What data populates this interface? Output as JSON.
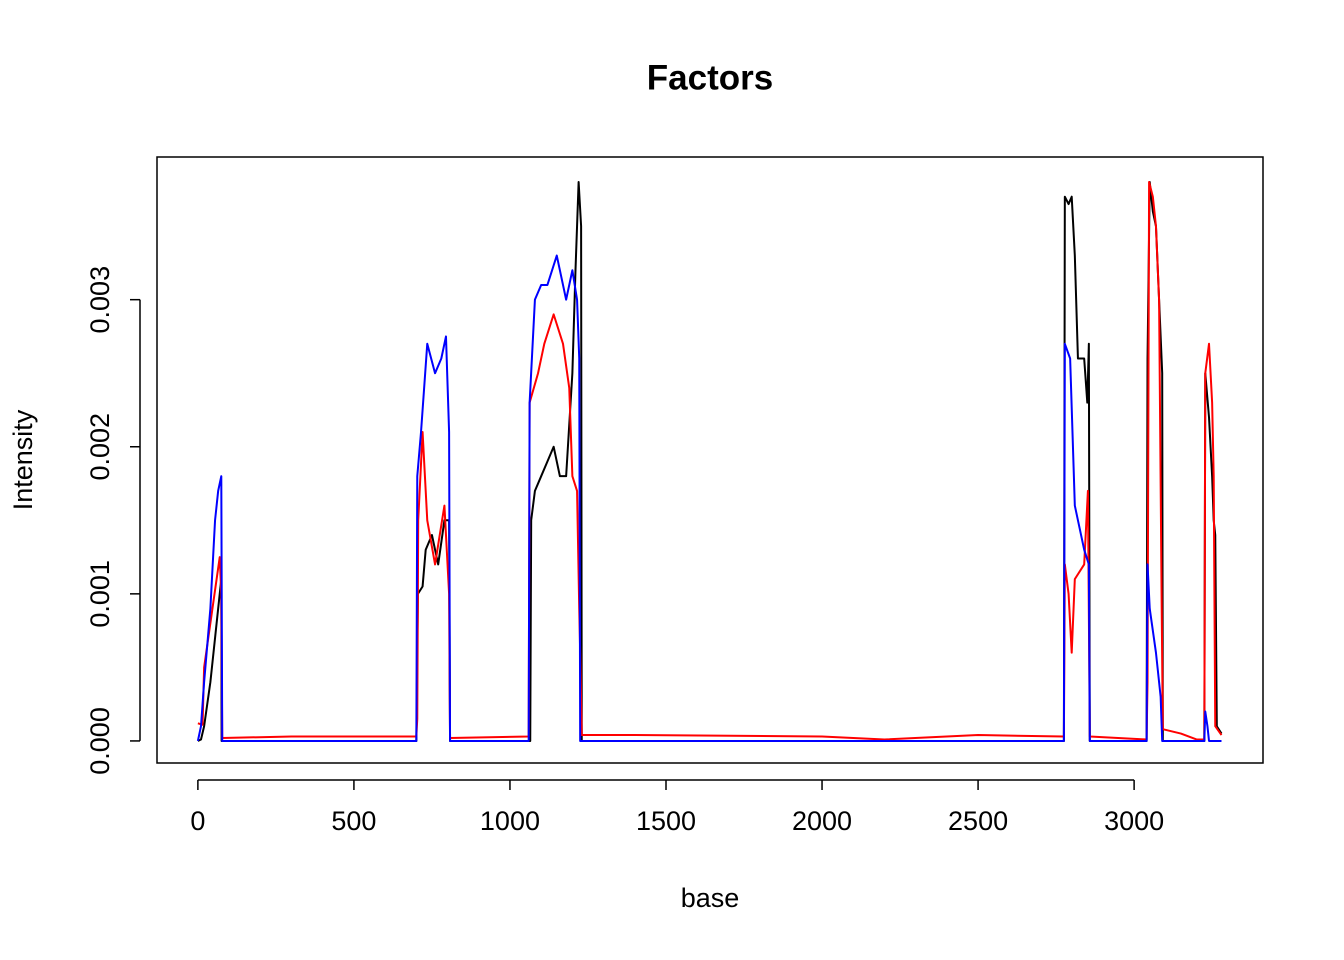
{
  "chart_data": {
    "type": "line",
    "title": "Factors",
    "x_label": "base",
    "y_label": "Intensity",
    "xlim": [
      -131,
      3413
    ],
    "ylim": [
      -0.00015,
      0.00397
    ],
    "xticks": [
      0,
      500,
      1000,
      1500,
      2000,
      2500,
      3000
    ],
    "yticks": [
      {
        "value": 0,
        "label": "0.000"
      },
      {
        "value": 0.001,
        "label": "0.001"
      },
      {
        "value": 0.002,
        "label": "0.002"
      },
      {
        "value": 0.003,
        "label": "0.003"
      }
    ],
    "grid": false,
    "series": [
      {
        "color": "#000000",
        "x": [
          0,
          10,
          20,
          40,
          60,
          70,
          75,
          76,
          700,
          705,
          720,
          730,
          750,
          770,
          790,
          805,
          808,
          1065,
          1068,
          1080,
          1100,
          1120,
          1140,
          1160,
          1180,
          1200,
          1210,
          1220,
          1228,
          1230,
          2775,
          2778,
          2790,
          2800,
          2810,
          2820,
          2840,
          2850,
          2855,
          2858,
          3040,
          3043,
          3050,
          3060,
          3070,
          3080,
          3090,
          3092,
          3225,
          3228,
          3240,
          3250,
          3255,
          3260,
          3265,
          3280
        ],
        "values": [
          0,
          1e-05,
          0.0001,
          0.0004,
          0.0008,
          0.001,
          0.0011,
          0,
          0,
          0.001,
          0.00105,
          0.0013,
          0.0014,
          0.0012,
          0.0015,
          0.0015,
          0,
          0,
          0.0015,
          0.0017,
          0.0018,
          0.0019,
          0.002,
          0.0018,
          0.0018,
          0.0025,
          0.0032,
          0.0038,
          0.0035,
          0,
          0,
          0.0037,
          0.00365,
          0.0037,
          0.0033,
          0.0026,
          0.0026,
          0.0023,
          0.0027,
          0,
          0,
          0.0026,
          0.0038,
          0.0036,
          0.0035,
          0.003,
          0.0025,
          0,
          0,
          0.0025,
          0.0022,
          0.0018,
          0.0015,
          0.0014,
          0.0001,
          5e-05
        ]
      },
      {
        "color": "#ff0000",
        "x": [
          0,
          15,
          20,
          40,
          60,
          70,
          75,
          78,
          300,
          700,
          703,
          706,
          720,
          735,
          760,
          790,
          805,
          808,
          1060,
          1063,
          1090,
          1110,
          1140,
          1170,
          1190,
          1200,
          1215,
          1222,
          1225,
          1230,
          1400,
          2000,
          2200,
          2500,
          2775,
          2778,
          2790,
          2800,
          2810,
          2840,
          2852,
          2858,
          3040,
          3043,
          3048,
          3060,
          3070,
          3080,
          3088,
          3092,
          3150,
          3200,
          3225,
          3228,
          3240,
          3250,
          3255,
          3260,
          3280
        ],
        "values": [
          0.00012,
          0.00011,
          0.0005,
          0.0008,
          0.0011,
          0.00125,
          0.001,
          2e-05,
          3e-05,
          3e-05,
          0.00015,
          0.0015,
          0.0021,
          0.0015,
          0.0012,
          0.0016,
          0.001,
          2e-05,
          3e-05,
          0.0023,
          0.0025,
          0.0027,
          0.0029,
          0.0027,
          0.0024,
          0.0018,
          0.0017,
          0.0009,
          0.0006,
          4e-05,
          4e-05,
          3e-05,
          1e-05,
          4e-05,
          3e-05,
          0.0012,
          0.001,
          0.0006,
          0.0011,
          0.0012,
          0.0017,
          3e-05,
          1e-05,
          0.0004,
          0.0038,
          0.0037,
          0.0035,
          0.003,
          0.001,
          8e-05,
          5e-05,
          1e-05,
          1e-05,
          0.0025,
          0.0027,
          0.0023,
          0.0018,
          0.0001,
          4e-05
        ]
      },
      {
        "color": "#0000ff",
        "x": [
          0,
          10,
          20,
          40,
          55,
          65,
          75,
          78,
          700,
          703,
          715,
          735,
          760,
          780,
          795,
          805,
          808,
          1060,
          1063,
          1080,
          1100,
          1120,
          1150,
          1180,
          1200,
          1215,
          1222,
          1225,
          2775,
          2778,
          2795,
          2810,
          2820,
          2840,
          2855,
          2858,
          3040,
          3043,
          3050,
          3070,
          3085,
          3090,
          3225,
          3228,
          3235,
          3240,
          3280
        ],
        "values": [
          0,
          0.0001,
          0.0004,
          0.0009,
          0.0015,
          0.0017,
          0.0018,
          0,
          0,
          0.0018,
          0.0021,
          0.0027,
          0.0025,
          0.0026,
          0.00275,
          0.0021,
          0,
          0,
          0.0023,
          0.003,
          0.0031,
          0.0031,
          0.0033,
          0.003,
          0.0032,
          0.003,
          0.0026,
          0,
          0,
          0.0027,
          0.0026,
          0.0016,
          0.0015,
          0.0013,
          0.0012,
          0,
          0,
          0.0012,
          0.0009,
          0.0006,
          0.0003,
          0,
          0,
          0.0002,
          0.0001,
          0,
          0
        ]
      }
    ]
  }
}
